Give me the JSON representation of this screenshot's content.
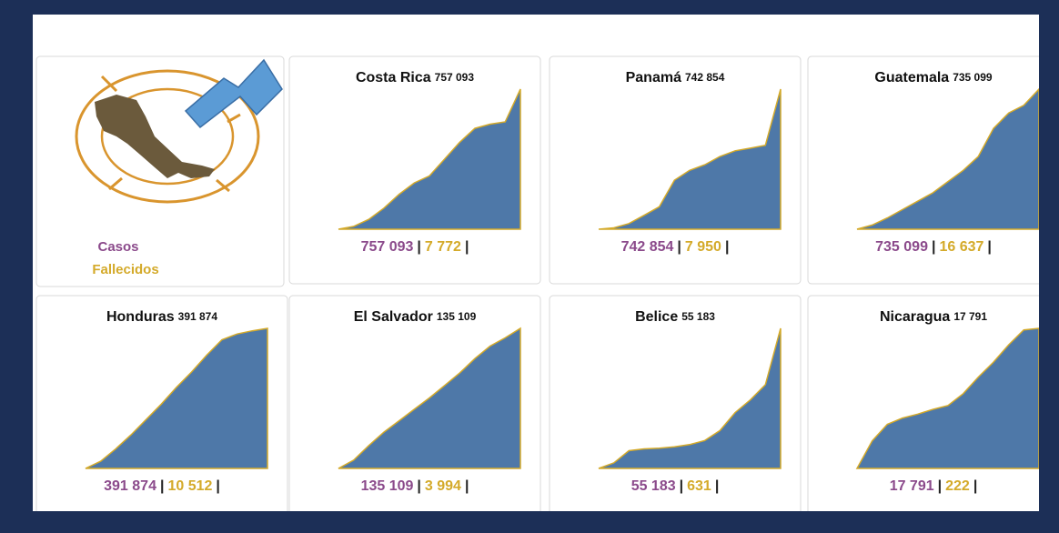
{
  "legend": {
    "cases": "Casos",
    "deaths": "Fallecidos"
  },
  "separator": "|",
  "chart_data": [
    {
      "type": "area",
      "title": "Costa Rica",
      "cases_label": "757 093",
      "deaths_label": "7 772",
      "color": "#4e78a8",
      "values": [
        0,
        15000,
        53000,
        114000,
        189000,
        250000,
        288000,
        379000,
        470000,
        545000,
        568000,
        580000,
        757093
      ]
    },
    {
      "type": "area",
      "title": "Panamá",
      "cases_label": "742 854",
      "deaths_label": "7 950",
      "color": "#4e78a8",
      "values": [
        0,
        7000,
        30000,
        74000,
        119000,
        260000,
        312000,
        342000,
        386000,
        416000,
        430000,
        445000,
        742854
      ]
    },
    {
      "type": "area",
      "title": "Guatemala",
      "cases_label": "735 099",
      "deaths_label": "16 637",
      "color": "#4e78a8",
      "values": [
        0,
        22000,
        59000,
        103000,
        147000,
        191000,
        250000,
        309000,
        382000,
        529000,
        610000,
        650000,
        735099
      ]
    },
    {
      "type": "area",
      "title": "Honduras",
      "cases_label": "391 874",
      "deaths_label": "10 512",
      "color": "#4e78a8",
      "values": [
        0,
        20000,
        55000,
        94000,
        137000,
        180000,
        227000,
        270000,
        317000,
        360000,
        376000,
        385000,
        391874
      ]
    },
    {
      "type": "area",
      "title": "El Salvador",
      "cases_label": "135 109",
      "deaths_label": "3 994",
      "color": "#4e78a8",
      "values": [
        0,
        8000,
        22000,
        35000,
        46000,
        57000,
        68000,
        80000,
        92000,
        106000,
        118000,
        126000,
        135109
      ]
    },
    {
      "type": "area",
      "title": "Belice",
      "cases_label": "55 183",
      "deaths_label": "631",
      "color": "#4e78a8",
      "values": [
        0,
        2200,
        7000,
        7700,
        8000,
        8500,
        9400,
        11000,
        14900,
        22000,
        27000,
        33000,
        55183
      ]
    },
    {
      "type": "area",
      "title": "Nicaragua",
      "cases_label": "17 791",
      "deaths_label": "222",
      "color": "#4e78a8",
      "values": [
        0,
        3500,
        5600,
        6400,
        6900,
        7500,
        8000,
        9500,
        11600,
        13500,
        15700,
        17600,
        17791
      ]
    }
  ]
}
